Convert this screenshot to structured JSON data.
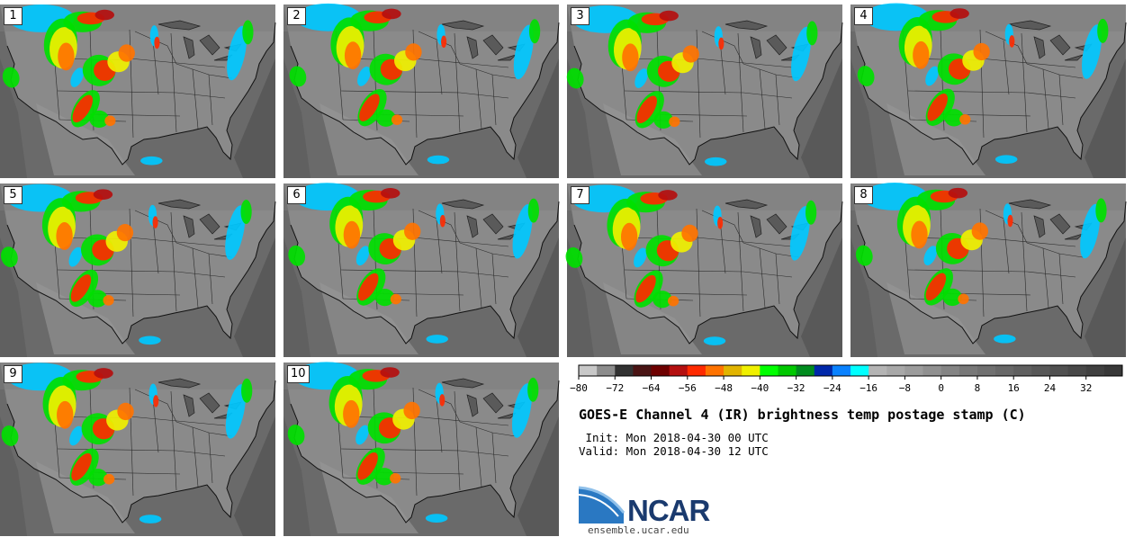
{
  "panels": [
    {
      "label": "1"
    },
    {
      "label": "2"
    },
    {
      "label": "3"
    },
    {
      "label": "4"
    },
    {
      "label": "5"
    },
    {
      "label": "6"
    },
    {
      "label": "7"
    },
    {
      "label": "8"
    },
    {
      "label": "9"
    },
    {
      "label": "10"
    }
  ],
  "chart_data": {
    "type": "heatmap",
    "title": "GOES-E Channel 4 (IR) brightness temp postage stamp (C)",
    "units": "C",
    "colorbar": {
      "min": -80,
      "max": 40,
      "step": 4,
      "ticks": [
        -80,
        -72,
        -64,
        -56,
        -48,
        -40,
        -32,
        -24,
        -16,
        -8,
        0,
        8,
        16,
        24,
        32
      ],
      "tick_labels": [
        "−80",
        "−72",
        "−64",
        "−56",
        "−48",
        "−40",
        "−32",
        "−24",
        "−16",
        "−8",
        "0",
        "8",
        "16",
        "24",
        "32"
      ],
      "colors": [
        "#c8c8c8",
        "#8c8c8c",
        "#323232",
        "#4a1414",
        "#6e0000",
        "#b40f0f",
        "#ff2a00",
        "#ff7300",
        "#e1b400",
        "#f0f000",
        "#00ff00",
        "#00c800",
        "#008c1e",
        "#0028aa",
        "#0a82ff",
        "#00ffff",
        "#b4b4b4",
        "#a8a8a8",
        "#9c9c9c",
        "#909090",
        "#848484",
        "#787878",
        "#707070",
        "#686868",
        "#606060",
        "#585858",
        "#505050",
        "#484848",
        "#404040",
        "#383838"
      ]
    },
    "members": 10
  },
  "info": {
    "init": " Init: Mon 2018-04-30 00 UTC",
    "valid": "Valid: Mon 2018-04-30 12 UTC"
  },
  "logo": {
    "name": "NCAR",
    "url": "ensemble.ucar.edu"
  }
}
